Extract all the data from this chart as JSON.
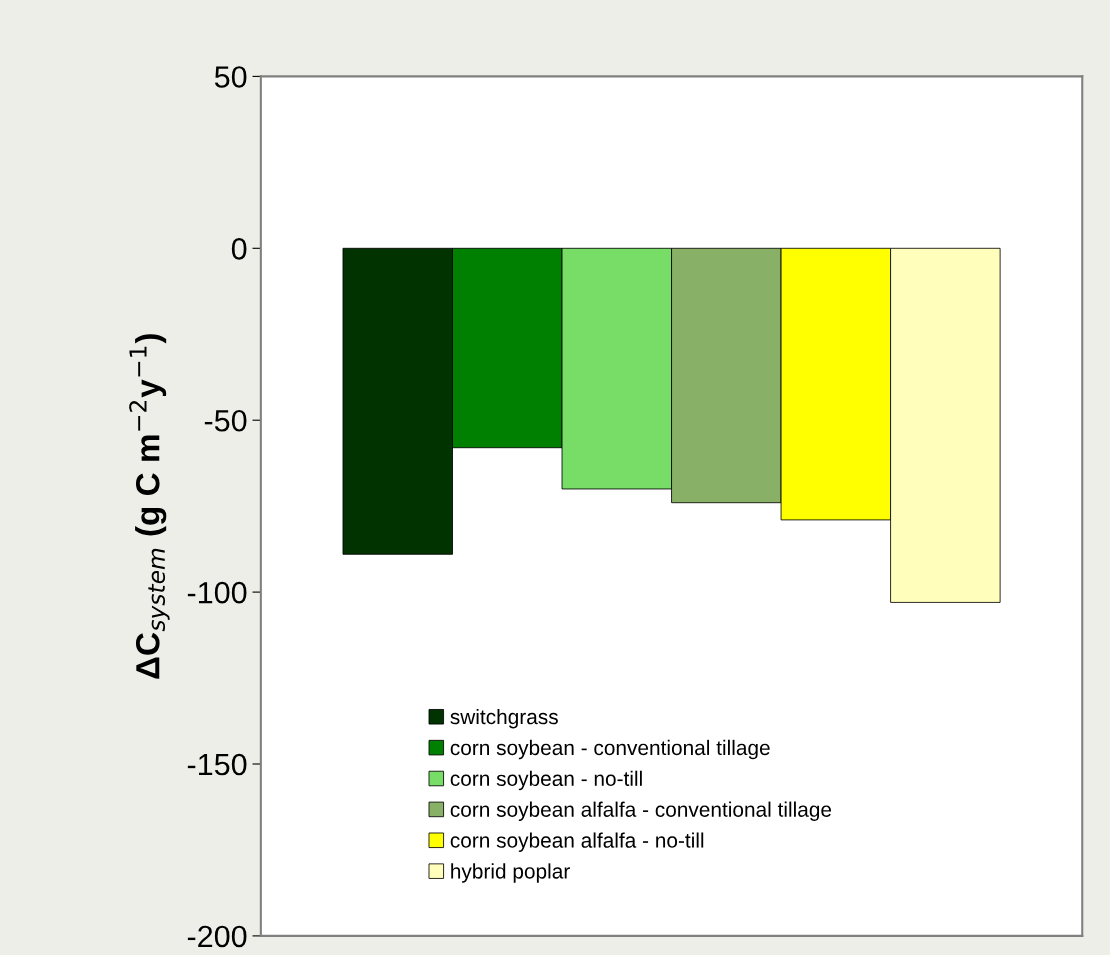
{
  "chart_data": {
    "type": "bar",
    "ylabel": "ΔC$_{system}$ (g C m$^{−2}$y$^{−1}$)",
    "categories": [
      null
    ],
    "series": [
      {
        "name": "switchgrass",
        "color": "#003300",
        "values": [
          -89
        ]
      },
      {
        "name": "corn soybean - conventional tillage",
        "color": "#008000",
        "values": [
          -58
        ]
      },
      {
        "name": "corn soybean - no-till",
        "color": "#77dd66",
        "values": [
          -70
        ]
      },
      {
        "name": "corn soybean alfalfa - conventional tillage",
        "color": "#88b066",
        "values": [
          -74
        ]
      },
      {
        "name": "corn soybean alfalfa - no-till",
        "color": "#ffff00",
        "values": [
          -79
        ]
      },
      {
        "name": "hybrid poplar",
        "color": "#ffffbb",
        "values": [
          -103
        ]
      }
    ],
    "ylim": [
      -200,
      50
    ],
    "yticks": [
      50,
      0,
      -50,
      -100,
      -150,
      -200
    ],
    "tick_labels": "y",
    "legend": "bottom",
    "grid": false
  }
}
